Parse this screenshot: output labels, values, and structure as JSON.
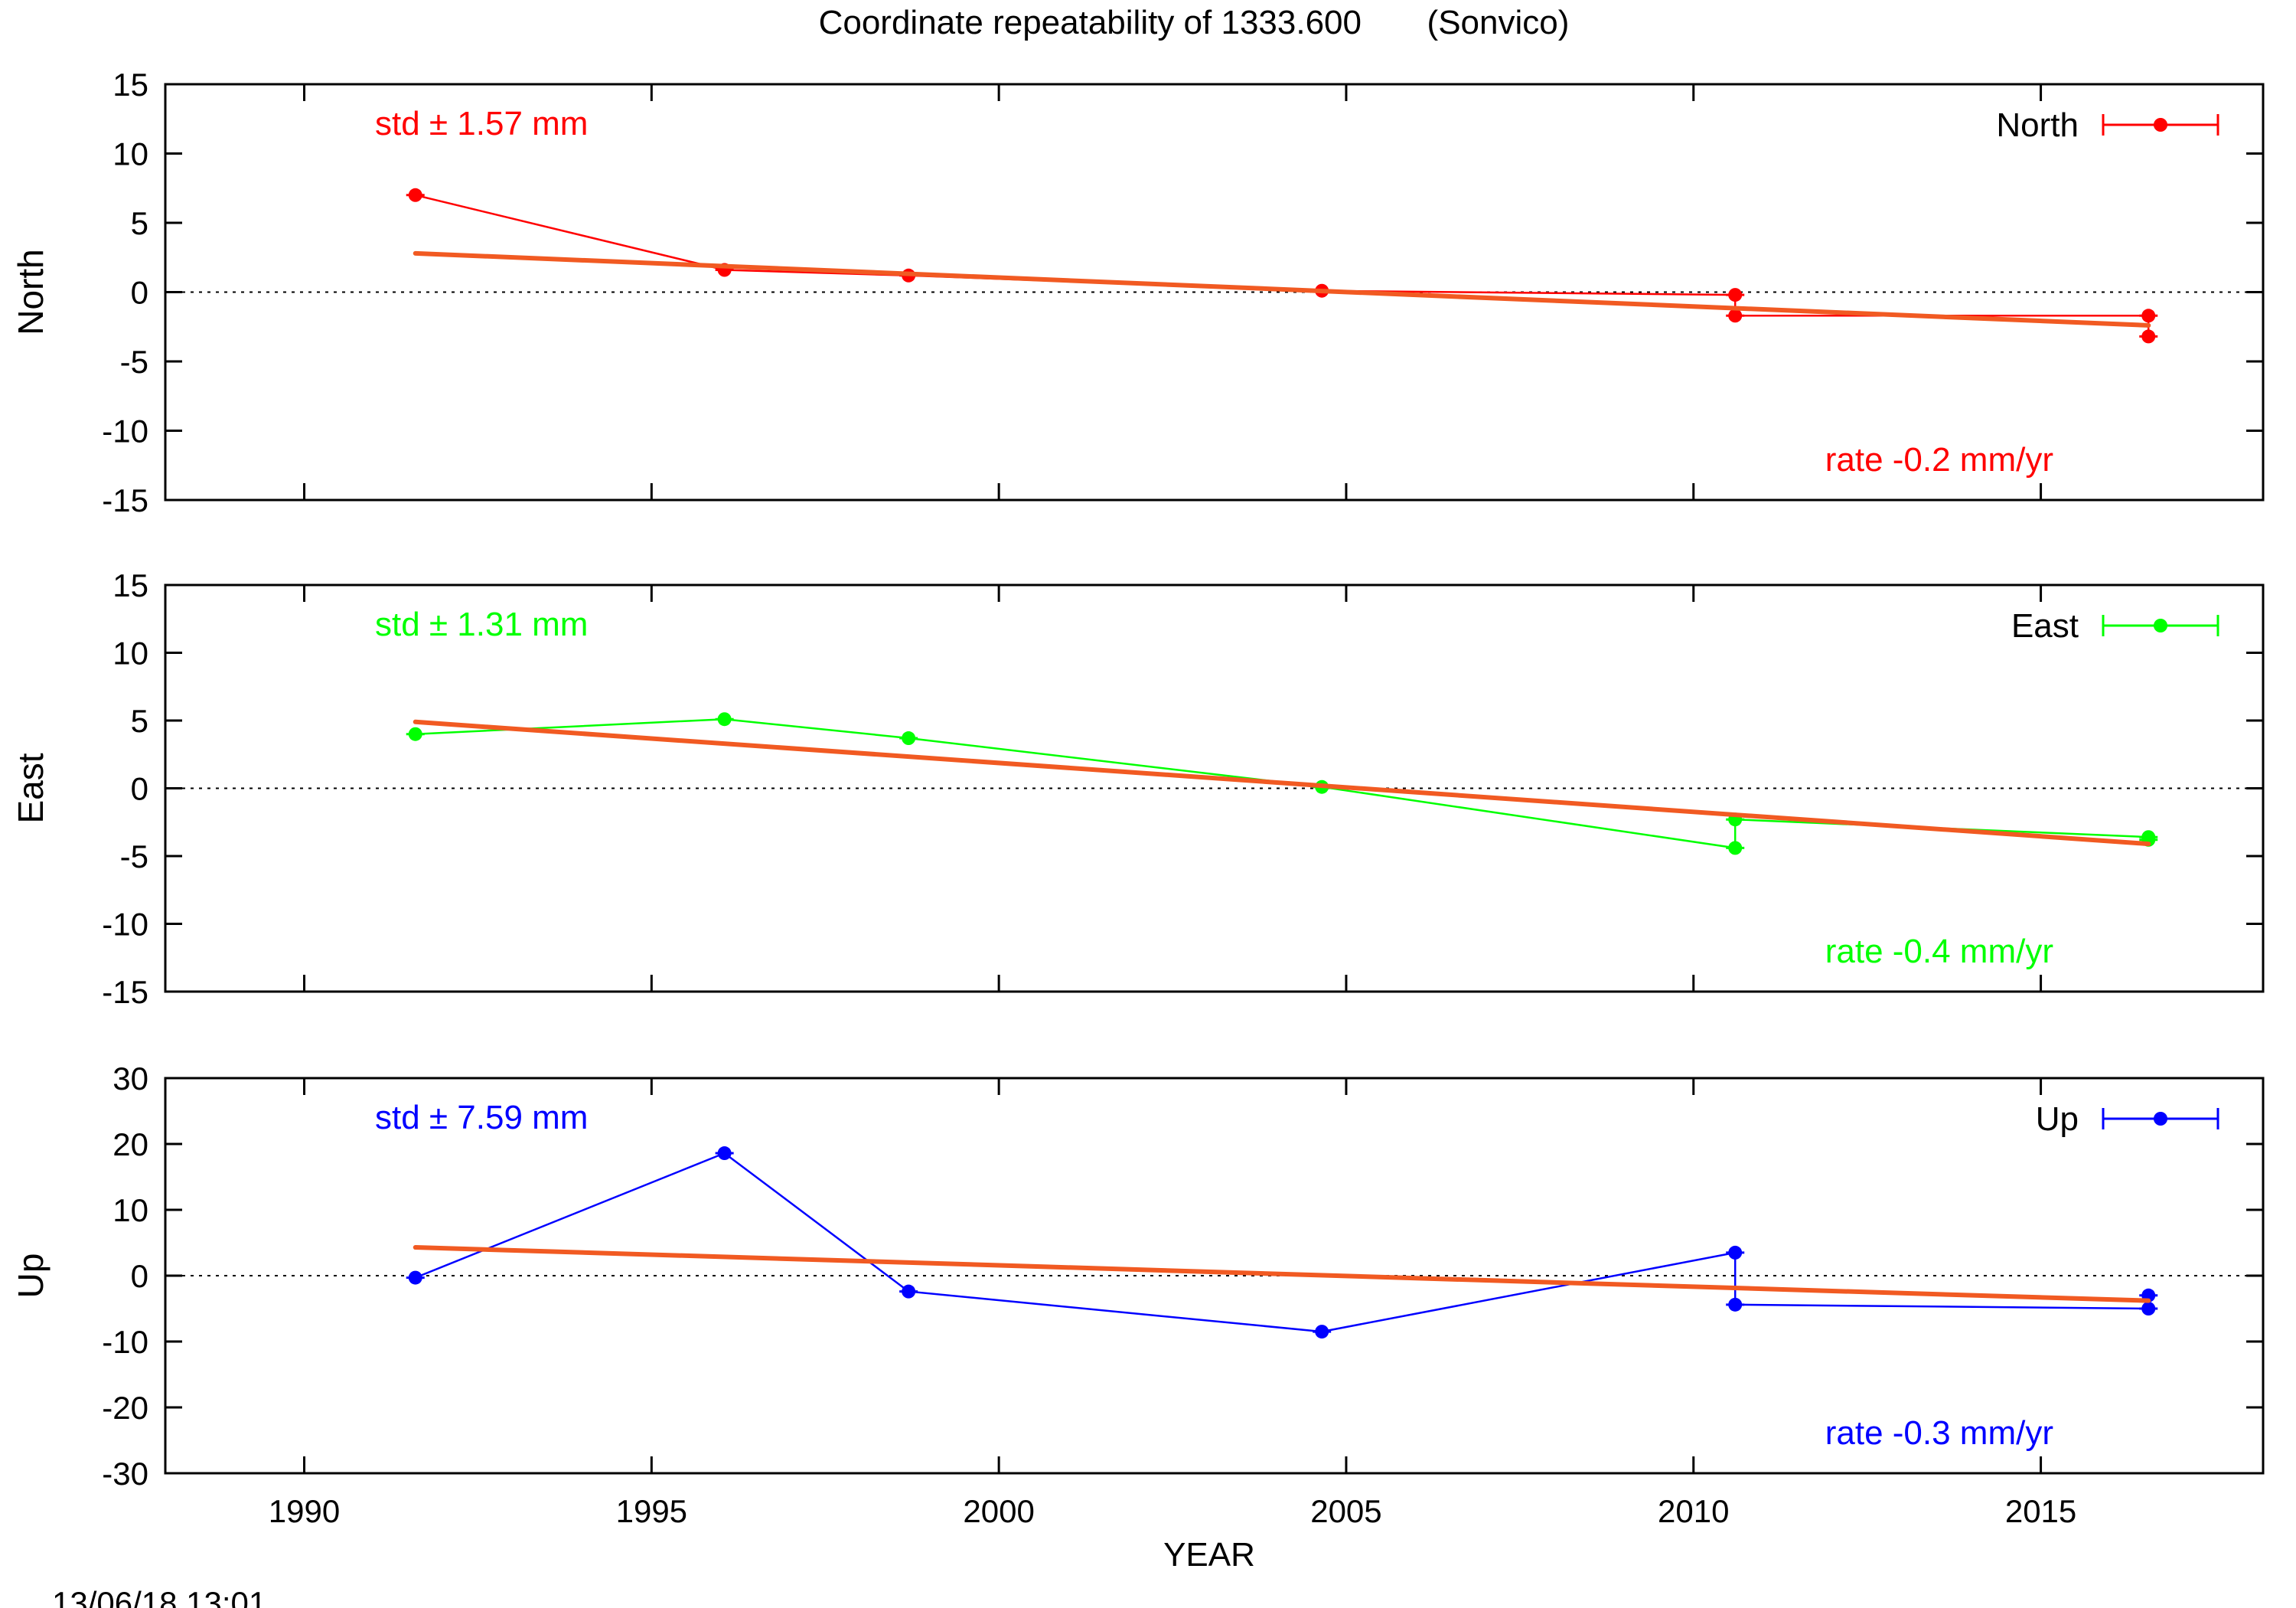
{
  "figure": {
    "title": "Coordinate repeatability of 1333.600       (Sonvico)",
    "timestamp": "13/06/18 13:01",
    "xlabel": "YEAR",
    "x_ticks": [
      1990,
      1995,
      2000,
      2005,
      2010,
      2015
    ],
    "xlim": [
      1988.0,
      2018.2
    ],
    "grid": false,
    "fit_color": "#f15a22",
    "zero_line": "dotted"
  },
  "chart_data": [
    {
      "type": "line",
      "ylabel": "North",
      "color": "#ff0000",
      "ylim": [
        -15,
        15
      ],
      "y_ticks": [
        15,
        10,
        5,
        0,
        -5,
        -10,
        -15
      ],
      "legend": "North",
      "legend_position": "top-right",
      "std_label": "std ± 1.57 mm",
      "rate_label": "rate -0.2 mm/yr",
      "series": [
        {
          "name": "North",
          "x": [
            1991.6,
            1996.05,
            1998.7,
            2004.65,
            2010.6,
            2010.6,
            2016.55,
            2016.55
          ],
          "y": [
            7.0,
            1.6,
            1.2,
            0.1,
            -0.2,
            -1.7,
            -1.7,
            -3.2
          ]
        }
      ],
      "fit": {
        "x": [
          1991.6,
          2016.55
        ],
        "y": [
          2.8,
          -2.4
        ]
      }
    },
    {
      "type": "line",
      "ylabel": "East",
      "color": "#00ff00",
      "ylim": [
        -15,
        15
      ],
      "y_ticks": [
        15,
        10,
        5,
        0,
        -5,
        -10,
        -15
      ],
      "legend": "East",
      "legend_position": "top-right",
      "std_label": "std ± 1.31 mm",
      "rate_label": "rate -0.4 mm/yr",
      "series": [
        {
          "name": "East",
          "x": [
            1991.6,
            1996.05,
            1998.7,
            2004.65,
            2010.6,
            2010.6,
            2016.55,
            2016.55
          ],
          "y": [
            4.0,
            5.1,
            3.7,
            0.1,
            -4.4,
            -2.3,
            -3.6,
            -3.8
          ]
        }
      ],
      "fit": {
        "x": [
          1991.6,
          2016.55
        ],
        "y": [
          4.9,
          -4.1
        ]
      }
    },
    {
      "type": "line",
      "ylabel": "Up",
      "color": "#0000ff",
      "ylim": [
        -30,
        30
      ],
      "y_ticks": [
        30,
        20,
        10,
        0,
        -10,
        -20,
        -30
      ],
      "legend": "Up",
      "legend_position": "top-right",
      "std_label": "std ± 7.59 mm",
      "rate_label": "rate -0.3 mm/yr",
      "series": [
        {
          "name": "Up",
          "x": [
            1991.6,
            1996.05,
            1998.7,
            2004.65,
            2010.6,
            2010.6,
            2016.55,
            2016.55
          ],
          "y": [
            -0.3,
            18.6,
            -2.4,
            -8.5,
            3.5,
            -4.4,
            -5.0,
            -3.0
          ]
        }
      ],
      "fit": {
        "x": [
          1991.6,
          2016.55
        ],
        "y": [
          4.3,
          -3.8
        ]
      }
    }
  ]
}
